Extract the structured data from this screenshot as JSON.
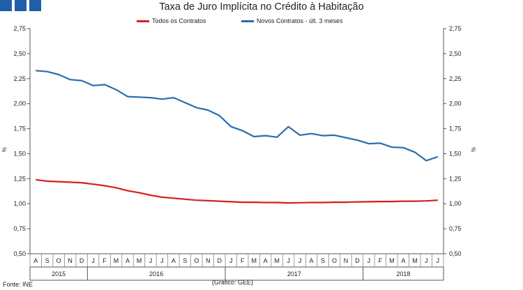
{
  "header": {
    "title": "Taxa de Juro Implícita no Crédito à Habitação"
  },
  "footer": {
    "source": "Fonte: INE",
    "credit": "(Gráfico: GEE)"
  },
  "colors": {
    "todos": "#d42020",
    "novos": "#2a6db0",
    "logo": "#1f5fa8"
  },
  "chart_data": {
    "type": "line",
    "title": "Taxa de Juro Implícita no Crédito à Habitação",
    "ylabel_left": "%",
    "ylabel_right": "%",
    "ylim": [
      0.5,
      2.75
    ],
    "yticks": [
      "0,50",
      "0,75",
      "1,00",
      "1,25",
      "1,50",
      "1,75",
      "2,00",
      "2,25",
      "2,50",
      "2,75"
    ],
    "ytick_values": [
      0.5,
      0.75,
      1.0,
      1.25,
      1.5,
      1.75,
      2.0,
      2.25,
      2.5,
      2.75
    ],
    "categories": [
      "A",
      "S",
      "O",
      "N",
      "D",
      "J",
      "F",
      "M",
      "A",
      "M",
      "J",
      "J",
      "A",
      "S",
      "O",
      "N",
      "D",
      "J",
      "F",
      "M",
      "A",
      "M",
      "J",
      "J",
      "A",
      "S",
      "O",
      "N",
      "D",
      "J",
      "F",
      "M",
      "A",
      "M",
      "J",
      "J"
    ],
    "years": [
      {
        "label": "2015",
        "start": 0,
        "end": 5
      },
      {
        "label": "2016",
        "start": 5,
        "end": 17
      },
      {
        "label": "2017",
        "start": 17,
        "end": 29
      },
      {
        "label": "2018",
        "start": 29,
        "end": 36
      }
    ],
    "legend_position": "top",
    "series": [
      {
        "name": "Todos os Contratos",
        "values": [
          1.24,
          1.225,
          1.22,
          1.215,
          1.21,
          1.195,
          1.18,
          1.16,
          1.13,
          1.11,
          1.085,
          1.065,
          1.055,
          1.045,
          1.035,
          1.03,
          1.025,
          1.02,
          1.015,
          1.015,
          1.012,
          1.012,
          1.008,
          1.01,
          1.012,
          1.012,
          1.015,
          1.015,
          1.018,
          1.02,
          1.022,
          1.022,
          1.025,
          1.025,
          1.028,
          1.035
        ]
      },
      {
        "name": "Novos Contratos - últ. 3 meses",
        "values": [
          2.33,
          2.32,
          2.29,
          2.24,
          2.23,
          2.18,
          2.19,
          2.14,
          2.07,
          2.065,
          2.06,
          2.045,
          2.06,
          2.01,
          1.96,
          1.935,
          1.88,
          1.77,
          1.73,
          1.67,
          1.68,
          1.665,
          1.77,
          1.685,
          1.7,
          1.68,
          1.685,
          1.66,
          1.635,
          1.6,
          1.605,
          1.565,
          1.56,
          1.515,
          1.43,
          1.47
        ]
      }
    ]
  }
}
